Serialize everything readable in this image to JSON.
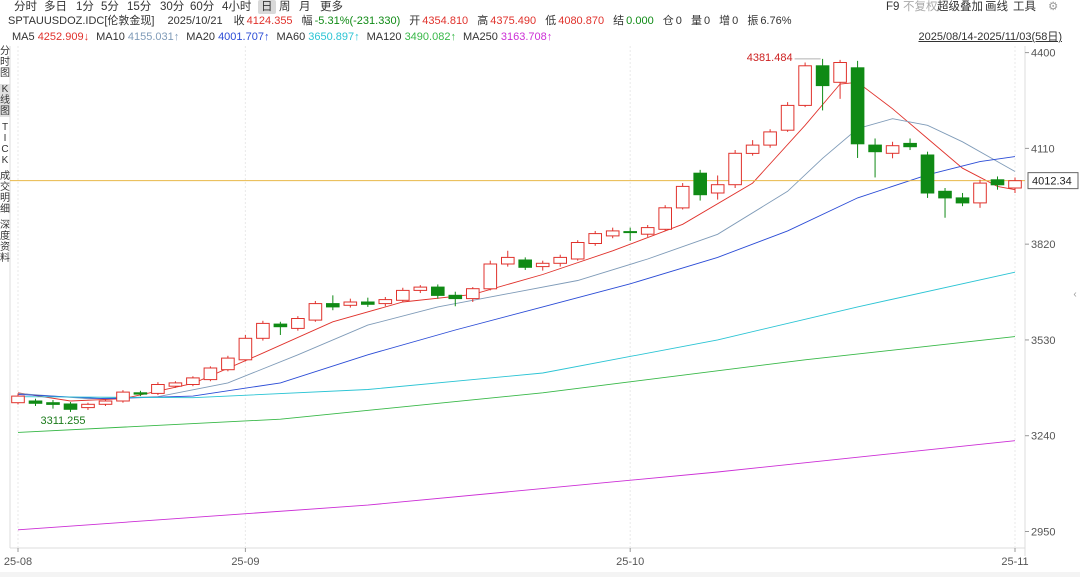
{
  "toolbar": {
    "periods": [
      "分时",
      "多日",
      "1分",
      "5分",
      "15分",
      "30分",
      "60分",
      "4小时",
      "日",
      "周",
      "月",
      "更多"
    ],
    "active_period": "日",
    "right_items": [
      "F9",
      "不复权",
      "超级叠加",
      "画线",
      "工具"
    ],
    "disabled_item": "不复权",
    "settings_icon": "gear-icon"
  },
  "info": {
    "symbol": "SPTAUUSDOZ.IDC[伦敦金现]",
    "date": "2025/10/21",
    "close_label": "收",
    "close": "4124.355",
    "change_label": "幅",
    "change": "-5.31%(-231.330)",
    "open_label": "开",
    "open": "4354.810",
    "high_label": "高",
    "high": "4375.490",
    "low_label": "低",
    "low": "4080.870",
    "settle_label": "结",
    "settle": "0.000",
    "oi_label": "仓",
    "oi": "0",
    "volume_label": "量",
    "volume": "0",
    "increase_label": "增",
    "increase": "0",
    "amplitude_label": "振",
    "amplitude": "6.76%"
  },
  "ma": [
    {
      "label": "MA5",
      "value": "4252.909",
      "arrow": "↓",
      "color": "#e0322c"
    },
    {
      "label": "MA10",
      "value": "4155.031",
      "arrow": "↑",
      "color": "#7f9bb8"
    },
    {
      "label": "MA20",
      "value": "4001.707",
      "arrow": "↑",
      "color": "#2b4cd6"
    },
    {
      "label": "MA60",
      "value": "3650.897",
      "arrow": "↑",
      "color": "#2bc4d4"
    },
    {
      "label": "MA120",
      "value": "3490.082",
      "arrow": "↑",
      "color": "#38b848"
    },
    {
      "label": "MA250",
      "value": "3163.708",
      "arrow": "↑",
      "color": "#cc2fd6"
    }
  ],
  "range": "2025/08/14-2025/11/03(58日)",
  "side_tabs": [
    "分时图",
    "K线图",
    "TICK",
    "成交明细",
    "深度资料"
  ],
  "active_side_tab": "K线图",
  "colors": {
    "up": "#e0322c",
    "down": "#0f8a15",
    "close_line": "#e8b84a",
    "label_blue": "#2c3d8f",
    "grid": "#e8e8e8"
  },
  "chart_data": {
    "type": "candlestick",
    "y_ticks": [
      2950,
      3240,
      3530,
      3820,
      4110,
      4400
    ],
    "ylim": [
      2900,
      4420
    ],
    "x_tick_labels": [
      {
        "label": "25-08",
        "index": 0
      },
      {
        "label": "25-09",
        "index": 13
      },
      {
        "label": "25-10",
        "index": 35
      },
      {
        "label": "25-11",
        "index": 57
      }
    ],
    "current_price": "4012.34",
    "current_price_value": 4012.34,
    "max_label": "4381.484",
    "min_label": "3311.255",
    "candles": [
      {
        "o": 3340,
        "c": 3360,
        "h": 3368,
        "l": 3335
      },
      {
        "o": 3345,
        "c": 3338,
        "h": 3352,
        "l": 3330
      },
      {
        "o": 3340,
        "c": 3335,
        "h": 3348,
        "l": 3322
      },
      {
        "o": 3336,
        "c": 3320,
        "h": 3342,
        "l": 3312
      },
      {
        "o": 3325,
        "c": 3335,
        "h": 3340,
        "l": 3318
      },
      {
        "o": 3335,
        "c": 3345,
        "h": 3350,
        "l": 3330
      },
      {
        "o": 3345,
        "c": 3372,
        "h": 3378,
        "l": 3340
      },
      {
        "o": 3370,
        "c": 3366,
        "h": 3376,
        "l": 3360
      },
      {
        "o": 3368,
        "c": 3395,
        "h": 3402,
        "l": 3363
      },
      {
        "o": 3390,
        "c": 3400,
        "h": 3405,
        "l": 3385
      },
      {
        "o": 3395,
        "c": 3415,
        "h": 3420,
        "l": 3390
      },
      {
        "o": 3410,
        "c": 3445,
        "h": 3450,
        "l": 3405
      },
      {
        "o": 3440,
        "c": 3475,
        "h": 3482,
        "l": 3435
      },
      {
        "o": 3470,
        "c": 3535,
        "h": 3545,
        "l": 3465
      },
      {
        "o": 3535,
        "c": 3580,
        "h": 3588,
        "l": 3528
      },
      {
        "o": 3578,
        "c": 3570,
        "h": 3585,
        "l": 3545
      },
      {
        "o": 3565,
        "c": 3595,
        "h": 3602,
        "l": 3558
      },
      {
        "o": 3590,
        "c": 3640,
        "h": 3648,
        "l": 3585
      },
      {
        "o": 3640,
        "c": 3630,
        "h": 3665,
        "l": 3620
      },
      {
        "o": 3635,
        "c": 3645,
        "h": 3655,
        "l": 3628
      },
      {
        "o": 3645,
        "c": 3638,
        "h": 3658,
        "l": 3630
      },
      {
        "o": 3640,
        "c": 3652,
        "h": 3660,
        "l": 3632
      },
      {
        "o": 3650,
        "c": 3680,
        "h": 3688,
        "l": 3645
      },
      {
        "o": 3680,
        "c": 3690,
        "h": 3696,
        "l": 3672
      },
      {
        "o": 3690,
        "c": 3665,
        "h": 3698,
        "l": 3655
      },
      {
        "o": 3665,
        "c": 3655,
        "h": 3676,
        "l": 3632
      },
      {
        "o": 3655,
        "c": 3685,
        "h": 3690,
        "l": 3645
      },
      {
        "o": 3685,
        "c": 3760,
        "h": 3770,
        "l": 3680
      },
      {
        "o": 3760,
        "c": 3780,
        "h": 3800,
        "l": 3752
      },
      {
        "o": 3772,
        "c": 3750,
        "h": 3780,
        "l": 3742
      },
      {
        "o": 3752,
        "c": 3762,
        "h": 3770,
        "l": 3740
      },
      {
        "o": 3762,
        "c": 3780,
        "h": 3788,
        "l": 3752
      },
      {
        "o": 3775,
        "c": 3825,
        "h": 3832,
        "l": 3770
      },
      {
        "o": 3822,
        "c": 3852,
        "h": 3860,
        "l": 3815
      },
      {
        "o": 3845,
        "c": 3860,
        "h": 3870,
        "l": 3838
      },
      {
        "o": 3858,
        "c": 3855,
        "h": 3870,
        "l": 3830
      },
      {
        "o": 3850,
        "c": 3870,
        "h": 3878,
        "l": 3842
      },
      {
        "o": 3865,
        "c": 3930,
        "h": 3938,
        "l": 3860
      },
      {
        "o": 3930,
        "c": 3995,
        "h": 4005,
        "l": 3925
      },
      {
        "o": 4035,
        "c": 3970,
        "h": 4045,
        "l": 3952
      },
      {
        "o": 3975,
        "c": 4000,
        "h": 4028,
        "l": 3955
      },
      {
        "o": 4000,
        "c": 4095,
        "h": 4105,
        "l": 3990
      },
      {
        "o": 4095,
        "c": 4120,
        "h": 4135,
        "l": 4088
      },
      {
        "o": 4120,
        "c": 4160,
        "h": 4168,
        "l": 4112
      },
      {
        "o": 4165,
        "c": 4240,
        "h": 4250,
        "l": 4160
      },
      {
        "o": 4240,
        "c": 4360,
        "h": 4370,
        "l": 4235
      },
      {
        "o": 4360,
        "c": 4300,
        "h": 4381,
        "l": 4225
      },
      {
        "o": 4310,
        "c": 4370,
        "h": 4378,
        "l": 4260
      },
      {
        "o": 4354,
        "c": 4124,
        "h": 4375,
        "l": 4081
      },
      {
        "o": 4120,
        "c": 4100,
        "h": 4140,
        "l": 4022
      },
      {
        "o": 4095,
        "c": 4118,
        "h": 4130,
        "l": 4080
      },
      {
        "o": 4125,
        "c": 4115,
        "h": 4140,
        "l": 4105
      },
      {
        "o": 4090,
        "c": 3975,
        "h": 4100,
        "l": 3960
      },
      {
        "o": 3980,
        "c": 3960,
        "h": 3990,
        "l": 3900
      },
      {
        "o": 3960,
        "c": 3945,
        "h": 3975,
        "l": 3935
      },
      {
        "o": 3945,
        "c": 4005,
        "h": 4015,
        "l": 3930
      },
      {
        "o": 4015,
        "c": 4000,
        "h": 4025,
        "l": 3985
      },
      {
        "o": 3990,
        "c": 4012,
        "h": 4022,
        "l": 3975
      }
    ],
    "ma_lines": [
      {
        "name": "MA5",
        "color": "#e0322c",
        "values": [
          [
            0,
            3370
          ],
          [
            3,
            3345
          ],
          [
            6,
            3352
          ],
          [
            10,
            3398
          ],
          [
            14,
            3490
          ],
          [
            18,
            3585
          ],
          [
            22,
            3645
          ],
          [
            26,
            3668
          ],
          [
            30,
            3728
          ],
          [
            34,
            3800
          ],
          [
            38,
            3880
          ],
          [
            42,
            4005
          ],
          [
            45,
            4180
          ],
          [
            47,
            4305
          ],
          [
            48,
            4310
          ],
          [
            50,
            4230
          ],
          [
            52,
            4140
          ],
          [
            54,
            4050
          ],
          [
            56,
            3995
          ],
          [
            57,
            3985
          ]
        ]
      },
      {
        "name": "MA10",
        "color": "#7f9bb8",
        "values": [
          [
            0,
            3368
          ],
          [
            4,
            3352
          ],
          [
            8,
            3358
          ],
          [
            12,
            3400
          ],
          [
            16,
            3485
          ],
          [
            20,
            3575
          ],
          [
            24,
            3630
          ],
          [
            28,
            3670
          ],
          [
            32,
            3710
          ],
          [
            36,
            3775
          ],
          [
            40,
            3850
          ],
          [
            44,
            3980
          ],
          [
            46,
            4080
          ],
          [
            48,
            4170
          ],
          [
            50,
            4200
          ],
          [
            52,
            4180
          ],
          [
            54,
            4130
          ],
          [
            56,
            4070
          ],
          [
            57,
            4040
          ]
        ]
      },
      {
        "name": "MA20",
        "color": "#2b4cd6",
        "values": [
          [
            0,
            3365
          ],
          [
            5,
            3352
          ],
          [
            10,
            3360
          ],
          [
            15,
            3400
          ],
          [
            20,
            3485
          ],
          [
            25,
            3560
          ],
          [
            30,
            3630
          ],
          [
            35,
            3700
          ],
          [
            40,
            3780
          ],
          [
            44,
            3860
          ],
          [
            48,
            3960
          ],
          [
            52,
            4030
          ],
          [
            55,
            4070
          ],
          [
            57,
            4085
          ]
        ]
      },
      {
        "name": "MA60",
        "color": "#2bc4d4",
        "values": [
          [
            0,
            3358
          ],
          [
            10,
            3355
          ],
          [
            20,
            3380
          ],
          [
            30,
            3430
          ],
          [
            40,
            3530
          ],
          [
            48,
            3630
          ],
          [
            57,
            3735
          ]
        ]
      },
      {
        "name": "MA120",
        "color": "#38b848",
        "values": [
          [
            0,
            3250
          ],
          [
            15,
            3290
          ],
          [
            30,
            3370
          ],
          [
            45,
            3470
          ],
          [
            57,
            3540
          ]
        ]
      },
      {
        "name": "MA250",
        "color": "#cc2fd6",
        "values": [
          [
            0,
            2955
          ],
          [
            20,
            3030
          ],
          [
            40,
            3130
          ],
          [
            57,
            3225
          ]
        ]
      }
    ]
  }
}
